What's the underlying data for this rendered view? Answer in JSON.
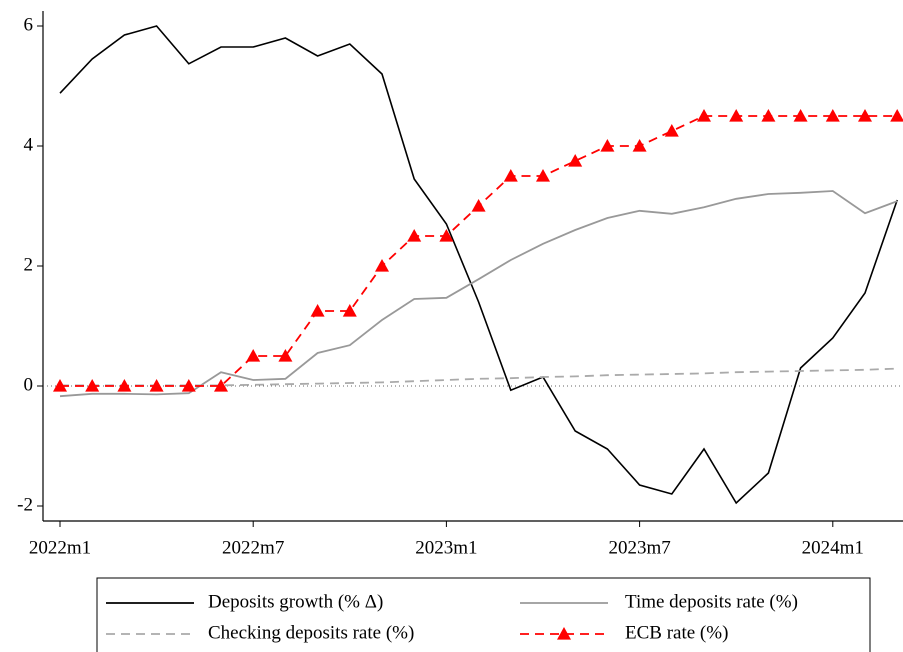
{
  "chart_data": {
    "type": "line",
    "categories": [
      "2022m1",
      null,
      null,
      null,
      null,
      null,
      "2022m7",
      null,
      null,
      null,
      null,
      null,
      "2023m1",
      null,
      null,
      null,
      null,
      null,
      "2023m7",
      null,
      null,
      null,
      null,
      null,
      "2024m1",
      null,
      null
    ],
    "ylim": [
      -2.25,
      6.25
    ],
    "yticks": [
      -2,
      0,
      2,
      4,
      6
    ],
    "hline": 0,
    "series": [
      {
        "name": "Deposits growth (% Δ)",
        "color": "#000000",
        "dash": "solid",
        "marker": "none",
        "values": [
          4.88,
          5.45,
          5.85,
          6.0,
          5.37,
          5.65,
          5.65,
          5.8,
          5.5,
          5.7,
          5.2,
          3.45,
          2.7,
          1.4,
          -0.07,
          0.15,
          -0.75,
          -1.05,
          -1.65,
          -1.8,
          -1.05,
          -1.95,
          -1.45,
          0.3,
          0.8,
          1.55,
          3.1
        ]
      },
      {
        "name": "Time deposits rate (%)",
        "color": "#999999",
        "dash": "solid",
        "marker": "none",
        "values": [
          -0.17,
          -0.13,
          -0.13,
          -0.14,
          -0.12,
          0.23,
          0.1,
          0.12,
          0.55,
          0.68,
          1.1,
          1.45,
          1.47,
          1.78,
          2.1,
          2.37,
          2.6,
          2.8,
          2.92,
          2.87,
          2.98,
          3.12,
          3.2,
          3.22,
          3.25,
          2.88,
          3.08
        ]
      },
      {
        "name": "Checking deposits rate (%)",
        "color": "#aaaaaa",
        "dash": "dashed",
        "marker": "none",
        "values": [
          0.01,
          0.01,
          0.01,
          0.01,
          0.01,
          0.01,
          0.02,
          0.03,
          0.04,
          0.05,
          0.06,
          0.08,
          0.1,
          0.12,
          0.13,
          0.15,
          0.16,
          0.18,
          0.19,
          0.2,
          0.21,
          0.23,
          0.24,
          0.25,
          0.26,
          0.27,
          0.29
        ]
      },
      {
        "name": "ECB rate (%)",
        "color": "#ff0000",
        "dash": "dashed",
        "marker": "triangle",
        "values": [
          0,
          0,
          0,
          0,
          0,
          0,
          0.5,
          0.5,
          1.25,
          1.25,
          2.0,
          2.5,
          2.5,
          3.0,
          3.5,
          3.5,
          3.75,
          4.0,
          4.0,
          4.25,
          4.5,
          4.5,
          4.5,
          4.5,
          4.5,
          4.5,
          4.5
        ]
      }
    ]
  }
}
